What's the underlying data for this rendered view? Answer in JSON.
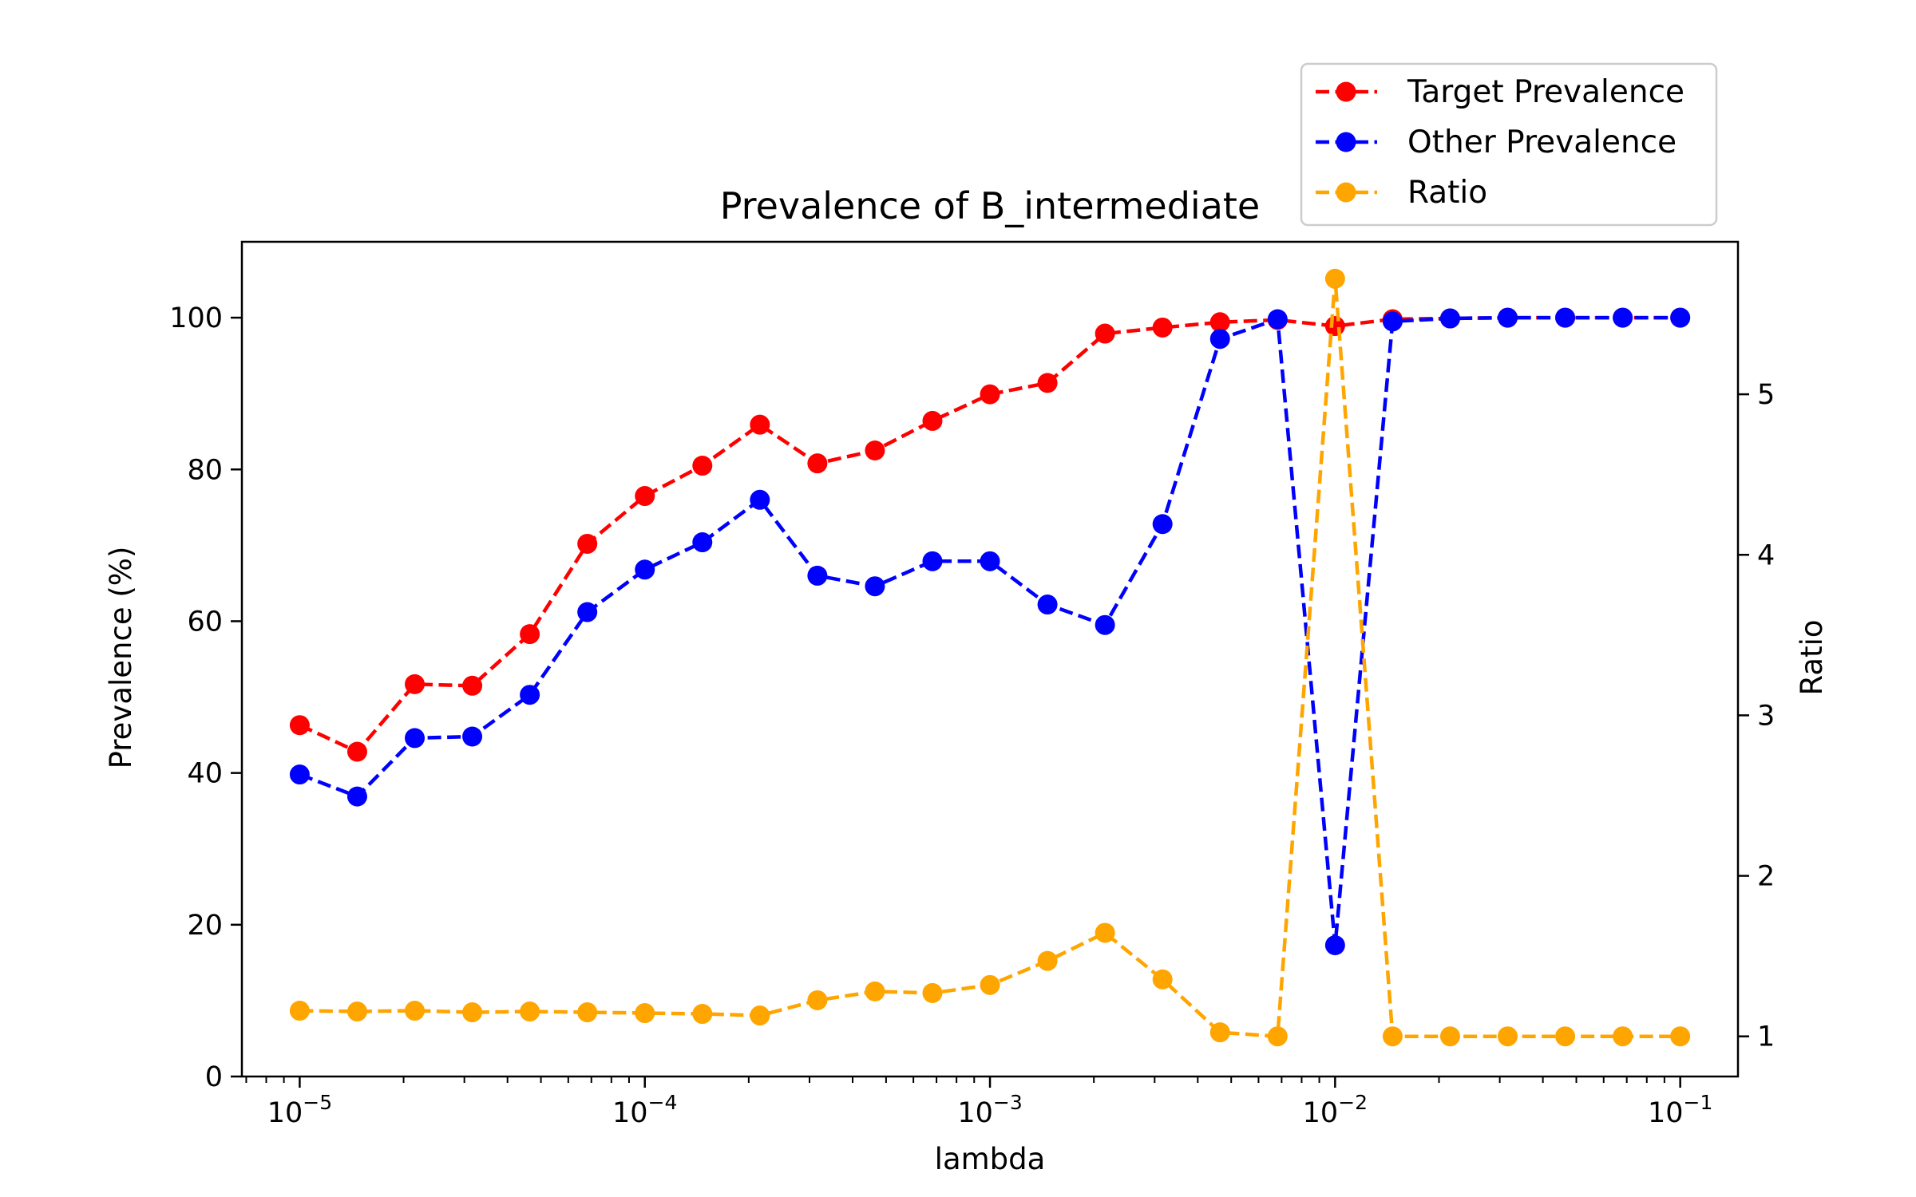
{
  "chart_data": {
    "type": "line",
    "title": "Prevalence of B_intermediate",
    "xlabel": "lambda",
    "ylabel": "Prevalence (%)",
    "y2label": "Ratio",
    "xscale": "log",
    "xlim": [
      6.8e-06,
      0.147
    ],
    "ylim": [
      0,
      110
    ],
    "y2lim": [
      0.75,
      5.95
    ],
    "grid": false,
    "legend_position": "top-right",
    "x_ticks": [
      {
        "value": 1e-05,
        "base": "10",
        "exp": "−5"
      },
      {
        "value": 0.0001,
        "base": "10",
        "exp": "−4"
      },
      {
        "value": 0.001,
        "base": "10",
        "exp": "−3"
      },
      {
        "value": 0.01,
        "base": "10",
        "exp": "−2"
      },
      {
        "value": 0.1,
        "base": "10",
        "exp": "−1"
      }
    ],
    "y_ticks": [
      "0",
      "20",
      "40",
      "60",
      "80",
      "100"
    ],
    "y2_ticks": [
      "1",
      "2",
      "3",
      "4",
      "5"
    ],
    "x": [
      1e-05,
      1.4678e-05,
      2.15443e-05,
      3.16228e-05,
      4.64159e-05,
      6.81292e-05,
      0.0001,
      0.00014678,
      0.000215443,
      0.000316228,
      0.000464159,
      0.000681292,
      0.001,
      0.0014678,
      0.00215443,
      0.00316228,
      0.00464159,
      0.00681292,
      0.01,
      0.014678,
      0.0215443,
      0.0316228,
      0.0464159,
      0.0681292,
      0.1
    ],
    "series": [
      {
        "name": "Target Prevalence",
        "axis": "left",
        "color": "#ff0000",
        "values": [
          46.3,
          42.8,
          51.7,
          51.5,
          58.3,
          70.2,
          76.5,
          80.5,
          85.9,
          80.8,
          82.5,
          86.4,
          89.9,
          91.4,
          97.9,
          98.7,
          99.4,
          99.7,
          98.9,
          99.8,
          99.9,
          100.0,
          100.0,
          100.0,
          100.0
        ]
      },
      {
        "name": "Other Prevalence",
        "axis": "left",
        "color": "#0000ff",
        "values": [
          39.8,
          36.9,
          44.6,
          44.8,
          50.3,
          61.2,
          66.8,
          70.4,
          76.0,
          66.0,
          64.6,
          67.9,
          67.9,
          62.2,
          59.5,
          72.8,
          97.2,
          99.8,
          17.3,
          99.5,
          99.9,
          100.0,
          100.0,
          100.0,
          100.0
        ]
      },
      {
        "name": "Ratio",
        "axis": "right",
        "color": "#ffa500",
        "values": [
          1.16,
          1.155,
          1.16,
          1.15,
          1.155,
          1.15,
          1.145,
          1.14,
          1.13,
          1.225,
          1.28,
          1.27,
          1.32,
          1.47,
          1.645,
          1.355,
          1.025,
          1.0,
          5.72,
          1.0,
          1.0,
          1.0,
          1.0,
          1.0,
          1.0
        ]
      }
    ]
  }
}
